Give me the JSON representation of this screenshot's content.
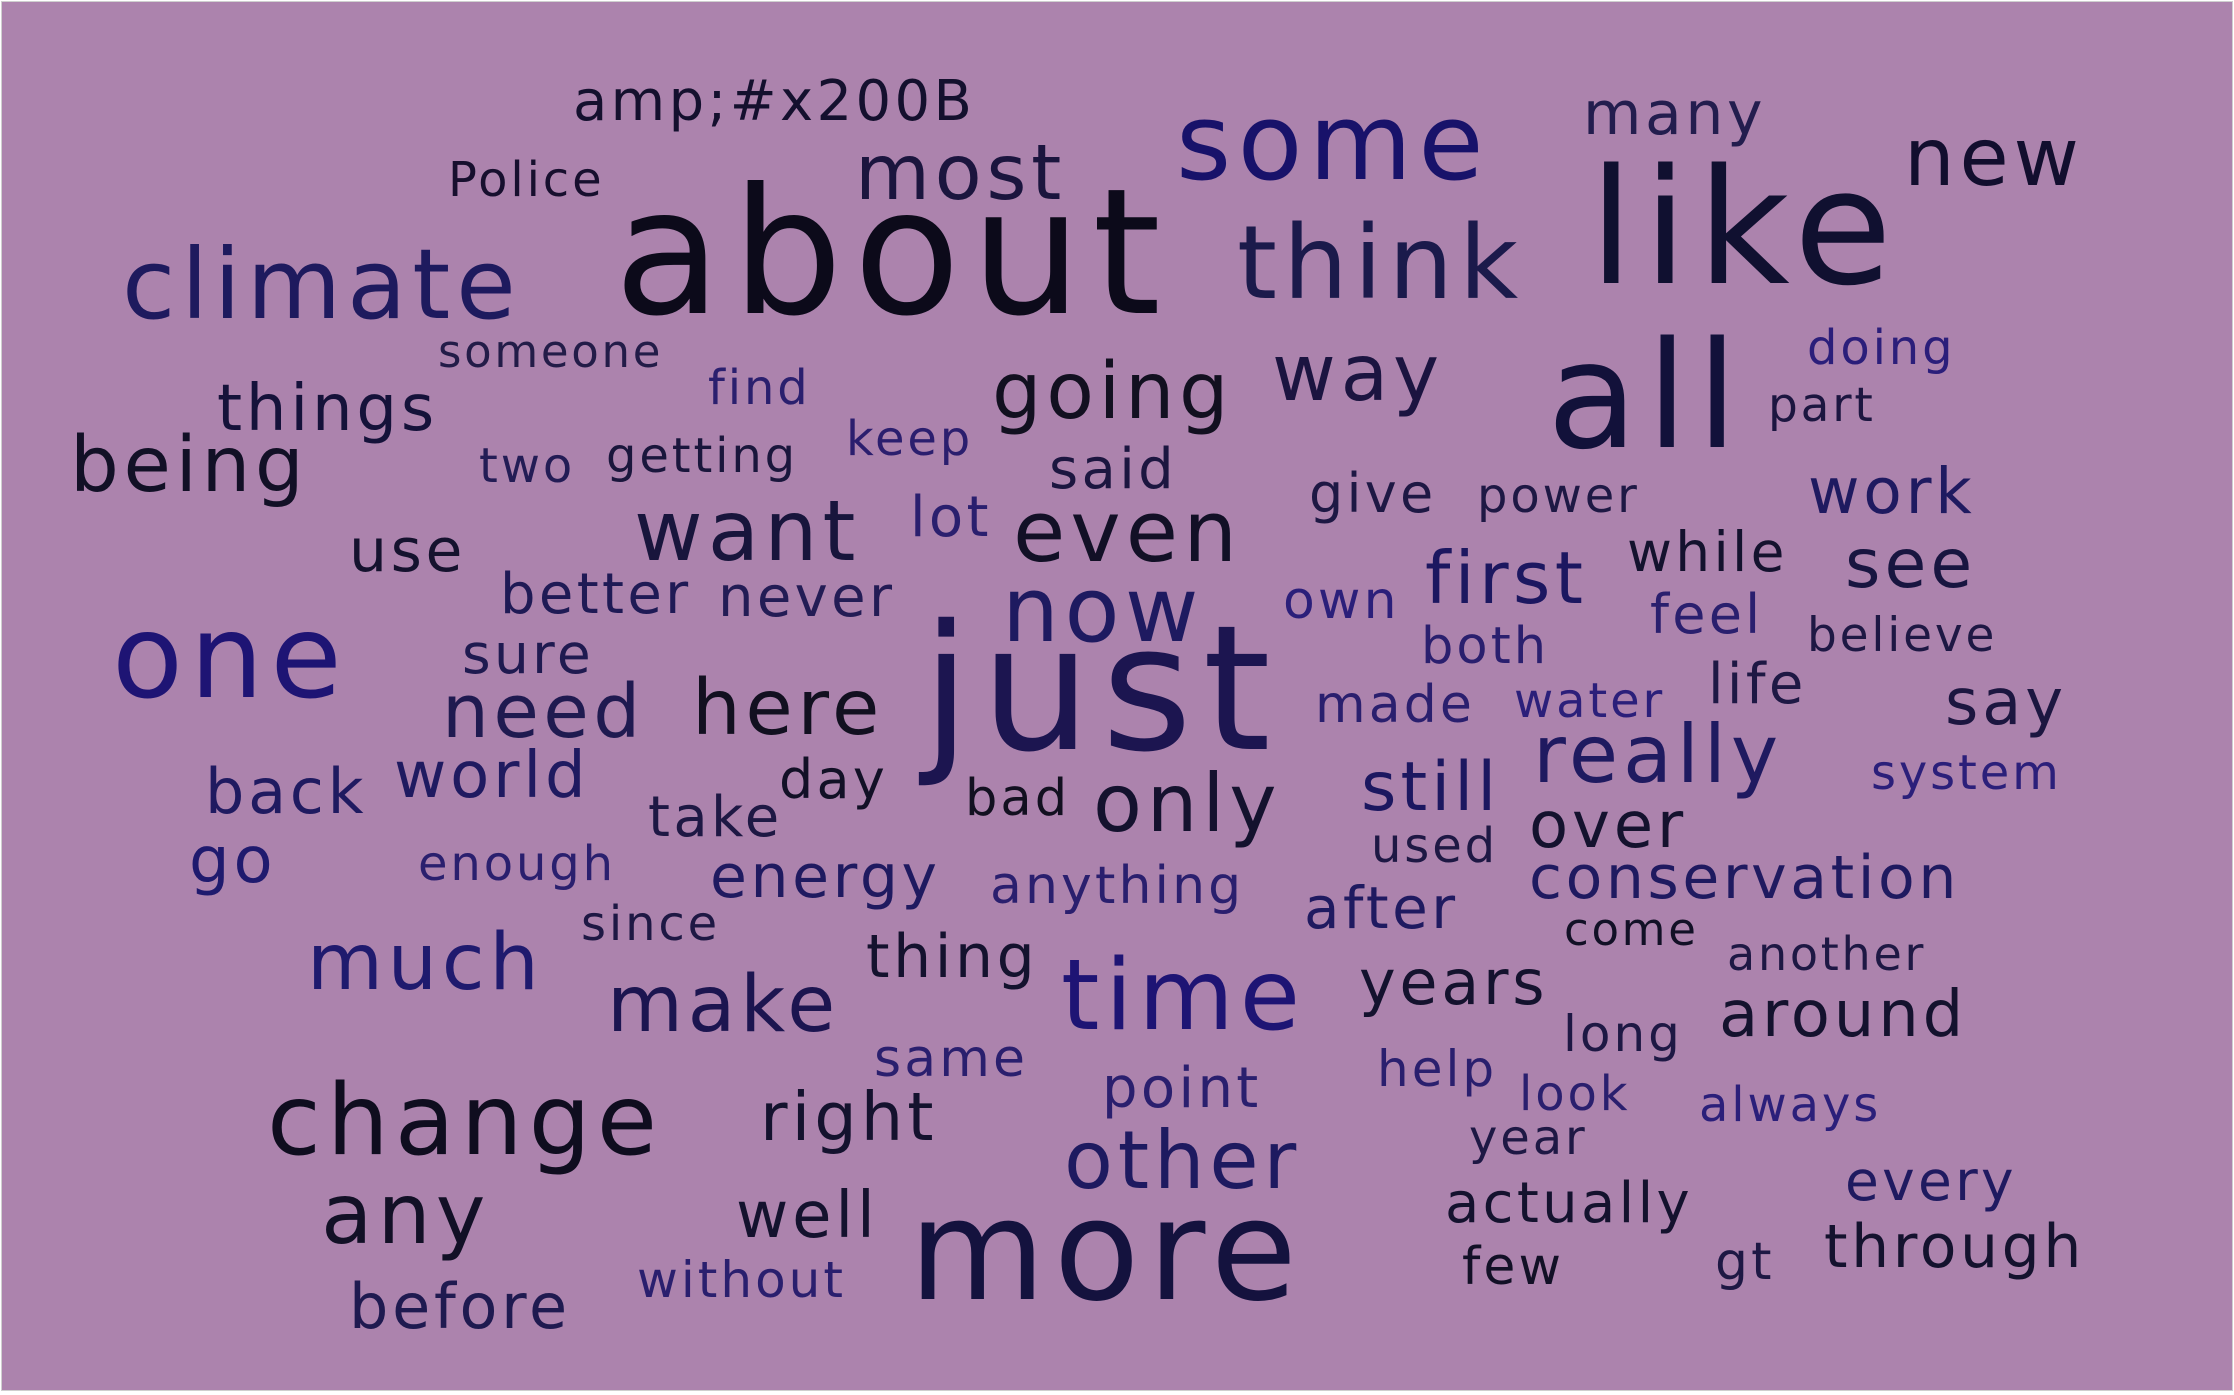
{
  "background": "#ac83ad",
  "words": [
    {
      "text": "amp;#x200B",
      "color": "#14102e"
    },
    {
      "text": "Police",
      "color": "#170f2e"
    },
    {
      "text": "about",
      "color": "#0c0a1a"
    },
    {
      "text": "climate",
      "color": "#1e1a5e"
    },
    {
      "text": "most",
      "color": "#1b153e"
    },
    {
      "text": "some",
      "color": "#18126a"
    },
    {
      "text": "many",
      "color": "#231d4e"
    },
    {
      "text": "new",
      "color": "#120e2e"
    },
    {
      "text": "think",
      "color": "#1b1a4b"
    },
    {
      "text": "like",
      "color": "#101030"
    },
    {
      "text": "someone",
      "color": "#231c48"
    },
    {
      "text": "things",
      "color": "#15123a"
    },
    {
      "text": "find",
      "color": "#2a1f6e"
    },
    {
      "text": "going",
      "color": "#121020"
    },
    {
      "text": "way",
      "color": "#1b1440"
    },
    {
      "text": "all",
      "color": "#12113a"
    },
    {
      "text": "doing",
      "color": "#2b1e7a"
    },
    {
      "text": "part",
      "color": "#1c1640"
    },
    {
      "text": "being",
      "color": "#121026"
    },
    {
      "text": "two",
      "color": "#231c55"
    },
    {
      "text": "getting",
      "color": "#1a163c"
    },
    {
      "text": "keep",
      "color": "#2b1e6e"
    },
    {
      "text": "said",
      "color": "#1c1640"
    },
    {
      "text": "give",
      "color": "#1e1844"
    },
    {
      "text": "power",
      "color": "#1e1844"
    },
    {
      "text": "work",
      "color": "#1f1a60"
    },
    {
      "text": "use",
      "color": "#15122e"
    },
    {
      "text": "want",
      "color": "#18153c"
    },
    {
      "text": "lot",
      "color": "#2a1f6e"
    },
    {
      "text": "even",
      "color": "#121026"
    },
    {
      "text": "while",
      "color": "#14122e"
    },
    {
      "text": "see",
      "color": "#181540"
    },
    {
      "text": "better",
      "color": "#1f1a55"
    },
    {
      "text": "never",
      "color": "#231c55"
    },
    {
      "text": "now",
      "color": "#1e1a60"
    },
    {
      "text": "own",
      "color": "#2b1f7a"
    },
    {
      "text": "first",
      "color": "#1c1760"
    },
    {
      "text": "feel",
      "color": "#2a1f6e"
    },
    {
      "text": "believe",
      "color": "#1e1844"
    },
    {
      "text": "one",
      "color": "#1e1474"
    },
    {
      "text": "sure",
      "color": "#1f1a50"
    },
    {
      "text": "both",
      "color": "#2a1f6e"
    },
    {
      "text": "need",
      "color": "#1f1a50"
    },
    {
      "text": "here",
      "color": "#121020"
    },
    {
      "text": "just",
      "color": "#1c1550"
    },
    {
      "text": "made",
      "color": "#2a1f6e"
    },
    {
      "text": "water",
      "color": "#2b1f7a"
    },
    {
      "text": "life",
      "color": "#1e1844"
    },
    {
      "text": "say",
      "color": "#1c1640"
    },
    {
      "text": "really",
      "color": "#1f1a60"
    },
    {
      "text": "system",
      "color": "#2b1f7a"
    },
    {
      "text": "back",
      "color": "#1f1a60"
    },
    {
      "text": "world",
      "color": "#1f1a60"
    },
    {
      "text": "day",
      "color": "#121026"
    },
    {
      "text": "bad",
      "color": "#121020"
    },
    {
      "text": "only",
      "color": "#14122e"
    },
    {
      "text": "still",
      "color": "#1c1760"
    },
    {
      "text": "take",
      "color": "#1e1844"
    },
    {
      "text": "used",
      "color": "#1e1844"
    },
    {
      "text": "over",
      "color": "#14122e"
    },
    {
      "text": "go",
      "color": "#1f1a6e"
    },
    {
      "text": "enough",
      "color": "#2a1f6e"
    },
    {
      "text": "energy",
      "color": "#1f1a60"
    },
    {
      "text": "anything",
      "color": "#2a1f6e"
    },
    {
      "text": "after",
      "color": "#1f1a60"
    },
    {
      "text": "conservation",
      "color": "#1f1a60"
    },
    {
      "text": "since",
      "color": "#1e1844"
    },
    {
      "text": "come",
      "color": "#121026"
    },
    {
      "text": "much",
      "color": "#1f1a6e"
    },
    {
      "text": "thing",
      "color": "#14122e"
    },
    {
      "text": "another",
      "color": "#1e1844"
    },
    {
      "text": "make",
      "color": "#1c1550"
    },
    {
      "text": "time",
      "color": "#1e1474"
    },
    {
      "text": "years",
      "color": "#14122e"
    },
    {
      "text": "around",
      "color": "#14122e"
    },
    {
      "text": "long",
      "color": "#1e1844"
    },
    {
      "text": "same",
      "color": "#2a1f6e"
    },
    {
      "text": "help",
      "color": "#2a1f6e"
    },
    {
      "text": "change",
      "color": "#0f0d1f"
    },
    {
      "text": "right",
      "color": "#14122e"
    },
    {
      "text": "point",
      "color": "#2a1f6e"
    },
    {
      "text": "look",
      "color": "#2a1f6e"
    },
    {
      "text": "always",
      "color": "#2b1f7a"
    },
    {
      "text": "other",
      "color": "#1e1a60"
    },
    {
      "text": "year",
      "color": "#1e1844"
    },
    {
      "text": "every",
      "color": "#1f1a60"
    },
    {
      "text": "any",
      "color": "#121026"
    },
    {
      "text": "actually",
      "color": "#14122e"
    },
    {
      "text": "well",
      "color": "#14122e"
    },
    {
      "text": "more",
      "color": "#14123e"
    },
    {
      "text": "through",
      "color": "#14122e"
    },
    {
      "text": "gt",
      "color": "#1e1844"
    },
    {
      "text": "few",
      "color": "#121026"
    },
    {
      "text": "without",
      "color": "#2a1f6e"
    },
    {
      "text": "before",
      "color": "#1f1a50"
    }
  ]
}
